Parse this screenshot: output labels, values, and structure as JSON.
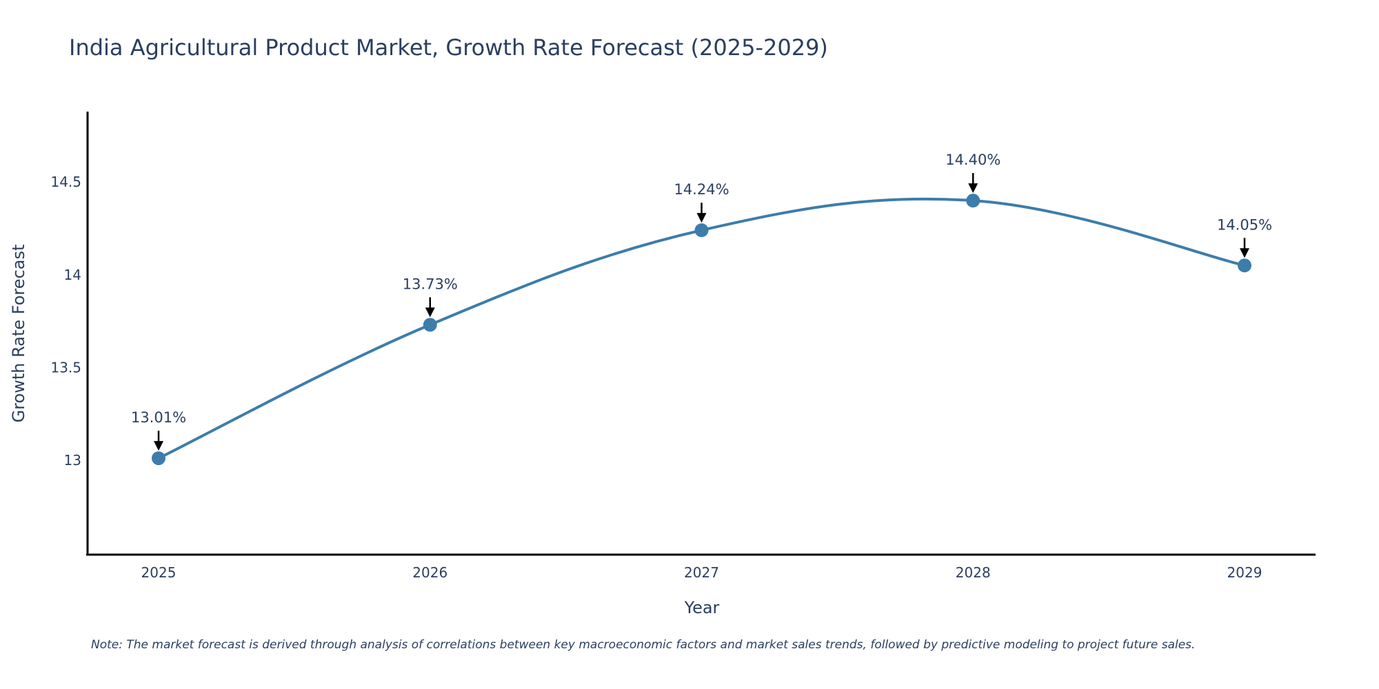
{
  "chart_data": {
    "type": "line",
    "title": "India Agricultural Product Market, Growth Rate Forecast (2025-2029)",
    "xlabel": "Year",
    "ylabel": "Growth Rate Forecast",
    "categories": [
      "2025",
      "2026",
      "2027",
      "2028",
      "2029"
    ],
    "series": [
      {
        "name": "Growth Rate Forecast",
        "values": [
          13.01,
          13.73,
          14.24,
          14.4,
          14.05
        ],
        "labels": [
          "13.01%",
          "13.73%",
          "14.24%",
          "14.40%",
          "14.05%"
        ]
      }
    ],
    "yticks": [
      "13",
      "13.5",
      "14",
      "14.5"
    ],
    "ytick_values": [
      13,
      13.5,
      14,
      14.5
    ],
    "ylim": [
      12.49,
      14.88
    ],
    "grid": false,
    "line_color": "#3d7dab",
    "marker_color": "#3d7dab",
    "arrow_color": "#000000",
    "note": "Note: The market forecast is derived through analysis of correlations between key macroeconomic factors and market sales trends, followed by predictive modeling to project future sales."
  }
}
